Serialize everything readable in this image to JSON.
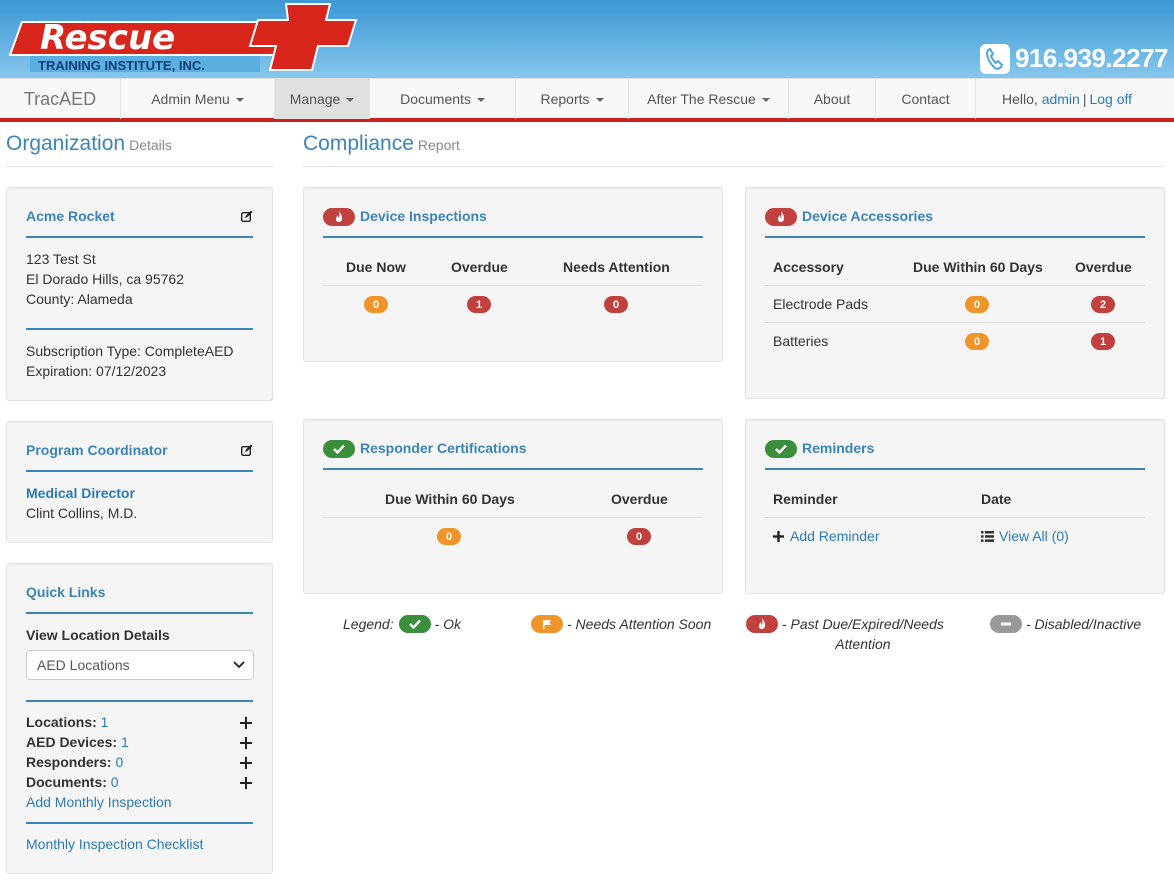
{
  "brand": {
    "logo_name": "Rescue",
    "logo_subtitle": "TRAINING INSTITUTE, INC.",
    "phone": "916.939.2277",
    "colors": {
      "red": "#cc1f1f",
      "blue": "#3a84b8",
      "header_blue": "#4fa6dc"
    }
  },
  "nav": {
    "brand": "TracAED",
    "items": [
      {
        "label": "Admin Menu",
        "dropdown": true
      },
      {
        "label": "Manage",
        "dropdown": true,
        "active": true
      },
      {
        "label": "Documents",
        "dropdown": true
      },
      {
        "label": "Reports",
        "dropdown": true
      },
      {
        "label": "After The Rescue",
        "dropdown": true
      },
      {
        "label": "About",
        "dropdown": false
      },
      {
        "label": "Contact",
        "dropdown": false
      }
    ],
    "hello": "Hello,",
    "user": "admin",
    "sep": "|",
    "logoff": "Log off"
  },
  "org": {
    "title": "Organization",
    "subtitle": "Details",
    "name": "Acme Rocket",
    "address1": "123 Test St",
    "address2": "El Dorado Hills, ca 95762",
    "county": "County: Alameda",
    "subscription": "Subscription Type: CompleteAED",
    "expiration": "Expiration: 07/12/2023"
  },
  "coordinator": {
    "heading": "Program Coordinator",
    "director_label": "Medical Director",
    "director_name": "Clint Collins, M.D."
  },
  "quick_links": {
    "heading": "Quick Links",
    "view_location_label": "View Location Details",
    "select_value": "AED Locations",
    "locations_label": "Locations:",
    "locations_count": "1",
    "devices_label": "AED Devices:",
    "devices_count": "1",
    "responders_label": "Responders:",
    "responders_count": "0",
    "documents_label": "Documents:",
    "documents_count": "0",
    "add_inspection": "Add Monthly Inspection",
    "checklist": "Monthly Inspection Checklist"
  },
  "compliance": {
    "title": "Compliance",
    "subtitle": "Report",
    "inspections": {
      "heading": "Device Inspections",
      "cols": [
        "Due Now",
        "Overdue",
        "Needs Attention"
      ],
      "values": [
        "0",
        "1",
        "0"
      ]
    },
    "accessories": {
      "heading": "Device Accessories",
      "cols": [
        "Accessory",
        "Due Within 60 Days",
        "Overdue"
      ],
      "rows": [
        {
          "name": "Electrode Pads",
          "due": "0",
          "overdue": "2"
        },
        {
          "name": "Batteries",
          "due": "0",
          "overdue": "1"
        }
      ]
    },
    "certifications": {
      "heading": "Responder Certifications",
      "cols": [
        "Due Within 60 Days",
        "Overdue"
      ],
      "values": [
        "0",
        "0"
      ]
    },
    "reminders": {
      "heading": "Reminders",
      "cols": [
        "Reminder",
        "Date"
      ],
      "add": "Add Reminder",
      "view_all": "View All (0)"
    }
  },
  "legend": {
    "label": "Legend:",
    "ok": "- Ok",
    "soon": "- Needs Attention Soon",
    "past_due_1": "- Past Due/Expired/Needs",
    "past_due_2": "Attention",
    "disabled": "- Disabled/Inactive"
  }
}
